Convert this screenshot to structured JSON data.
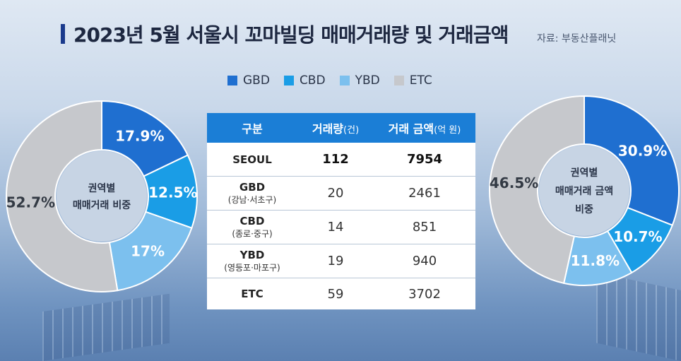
{
  "title": "2023년 5월 서울시 꼬마빌딩 매매거래량 및 거래금액",
  "source": "자료: 부동산플래닛",
  "colors": {
    "GBD": "#1f6fd0",
    "CBD": "#1a9de6",
    "YBD": "#7cc0ee",
    "ETC": "#c6c8cc"
  },
  "legend": [
    {
      "key": "GBD",
      "label": "GBD"
    },
    {
      "key": "CBD",
      "label": "CBD"
    },
    {
      "key": "YBD",
      "label": "YBD"
    },
    {
      "key": "ETC",
      "label": "ETC"
    }
  ],
  "table": {
    "headers": {
      "category": "구분",
      "volume": "거래량",
      "volume_unit": "(건)",
      "amount": "거래 금액",
      "amount_unit": "(억 원)"
    },
    "rows": [
      {
        "name": "SEOUL",
        "sub": "",
        "volume": "112",
        "amount": "7954"
      },
      {
        "name": "GBD",
        "sub": "(강남·서초구)",
        "volume": "20",
        "amount": "2461"
      },
      {
        "name": "CBD",
        "sub": "(종로·중구)",
        "volume": "14",
        "amount": "851"
      },
      {
        "name": "YBD",
        "sub": "(영등포·마포구)",
        "volume": "19",
        "amount": "940"
      },
      {
        "name": "ETC",
        "sub": "",
        "volume": "59",
        "amount": "3702"
      }
    ]
  },
  "chart_data": [
    {
      "type": "pie",
      "title": "권역별 매매거래 비중",
      "title_lines": [
        "권역별",
        "매매거래 비중"
      ],
      "categories": [
        "GBD",
        "CBD",
        "YBD",
        "ETC"
      ],
      "values": [
        17.9,
        12.5,
        17,
        52.7
      ],
      "labels": [
        "17.9%",
        "12.5%",
        "17%",
        "52.7%"
      ]
    },
    {
      "type": "pie",
      "title": "권역별 매매거래 금액 비중",
      "title_lines": [
        "권역별",
        "매매거래 금액",
        "비중"
      ],
      "categories": [
        "GBD",
        "CBD",
        "YBD",
        "ETC"
      ],
      "values": [
        30.9,
        10.7,
        11.8,
        46.5
      ],
      "labels": [
        "30.9%",
        "10.7%",
        "11.8%",
        "46.5%"
      ]
    }
  ]
}
